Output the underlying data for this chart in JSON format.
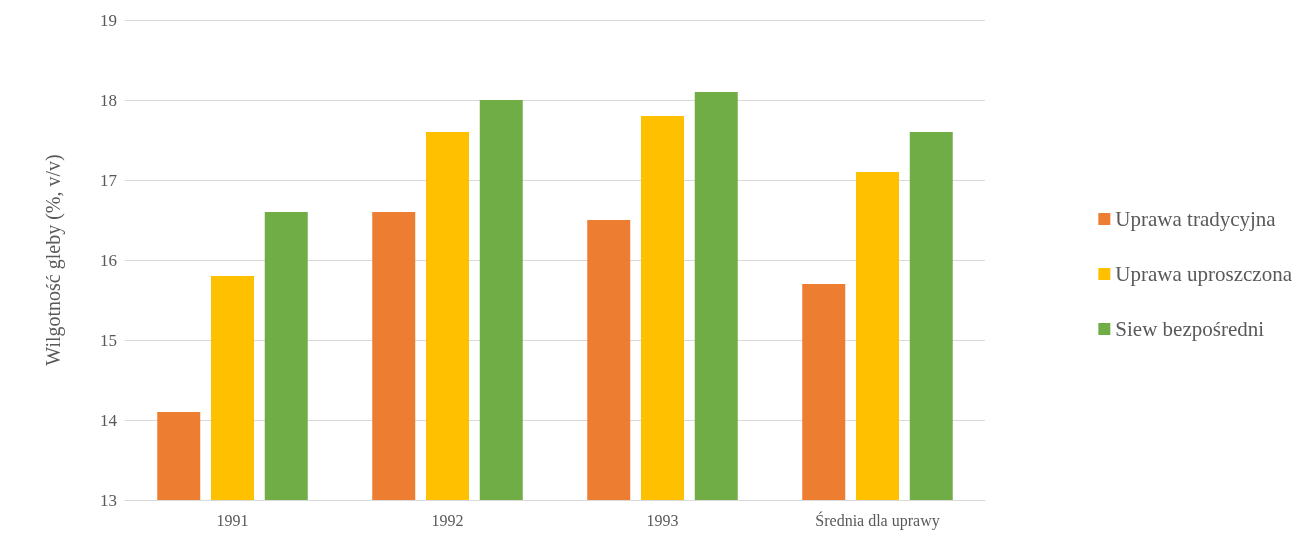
{
  "chart_data": {
    "type": "bar",
    "ylabel": "Wilgotność gleby (%, v/v)",
    "categories": [
      "1991",
      "1992",
      "1993",
      "Średnia dla uprawy"
    ],
    "series": [
      {
        "name": "Uprawa tradycyjna",
        "color": "#ed7d31",
        "values": [
          14.1,
          16.6,
          16.5,
          15.7
        ]
      },
      {
        "name": "Uprawa uproszczona",
        "color": "#ffc000",
        "values": [
          15.8,
          17.6,
          17.8,
          17.1
        ]
      },
      {
        "name": "Siew bezpośredni",
        "color": "#70ad47",
        "values": [
          16.6,
          18.0,
          18.1,
          17.6
        ]
      }
    ],
    "ylim": [
      13,
      19
    ],
    "yticks": [
      13,
      14,
      15,
      16,
      17,
      18,
      19
    ],
    "grid": "y",
    "legend": "right"
  }
}
